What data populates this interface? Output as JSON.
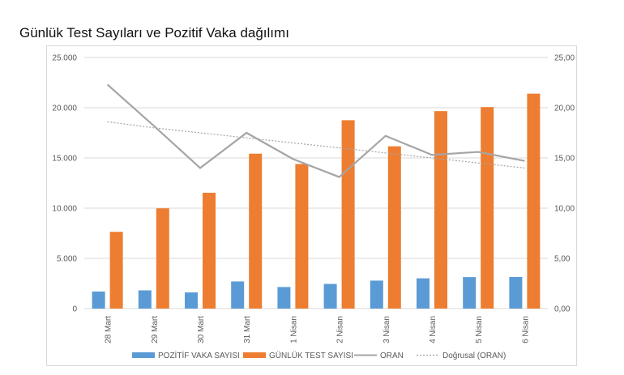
{
  "page": {
    "title": "Günlük Test Sayıları ve Pozitif Vaka dağılımı"
  },
  "colors": {
    "blue": "#5B9BD5",
    "orange": "#ED7D31",
    "oran": "#A5A5A5",
    "trend": "#A5A5A5",
    "grid": "#D9D9D9",
    "axis_text": "#595959"
  },
  "chart_data": {
    "type": "bar",
    "title": "Günlük Test Sayıları ve Pozitif Vaka dağılımı",
    "categories": [
      "28 Mart",
      "29 Mart",
      "30 Mart",
      "31 Mart",
      "1 Nisan",
      "2 Nisan",
      "3 Nisan",
      "4 Nisan",
      "5 Nisan",
      "6 Nisan"
    ],
    "series": [
      {
        "name": "POZİTİF VAKA SAYISI",
        "type": "bar",
        "axis": "left",
        "values": [
          1700,
          1815,
          1610,
          2704,
          2148,
          2456,
          2786,
          3013,
          3135,
          3148
        ]
      },
      {
        "name": "GÜNLÜK TEST SAYISI",
        "type": "bar",
        "axis": "left",
        "values": [
          7641,
          9982,
          11535,
          15422,
          14396,
          18757,
          16160,
          19664,
          20065,
          21400
        ]
      },
      {
        "name": "ORAN",
        "type": "line",
        "axis": "right",
        "values": [
          22.3,
          18.2,
          14.0,
          17.5,
          14.9,
          13.1,
          17.2,
          15.3,
          15.6,
          14.7
        ]
      },
      {
        "name": "Doğrusal (ORAN)",
        "type": "trendline",
        "axis": "right",
        "values": [
          18.6,
          18.0,
          17.5,
          17.0,
          16.5,
          16.0,
          15.5,
          15.0,
          14.5,
          14.0
        ]
      }
    ],
    "left_axis": {
      "ylim": [
        0,
        25000
      ],
      "ticks": [
        "0",
        "5.000",
        "10.000",
        "15.000",
        "20.000",
        "25.000"
      ]
    },
    "right_axis": {
      "ylim": [
        0,
        25
      ],
      "ticks": [
        "0,00",
        "5,00",
        "10,00",
        "15,00",
        "20,00",
        "25,00"
      ]
    },
    "grid": true,
    "legend_position": "bottom"
  }
}
